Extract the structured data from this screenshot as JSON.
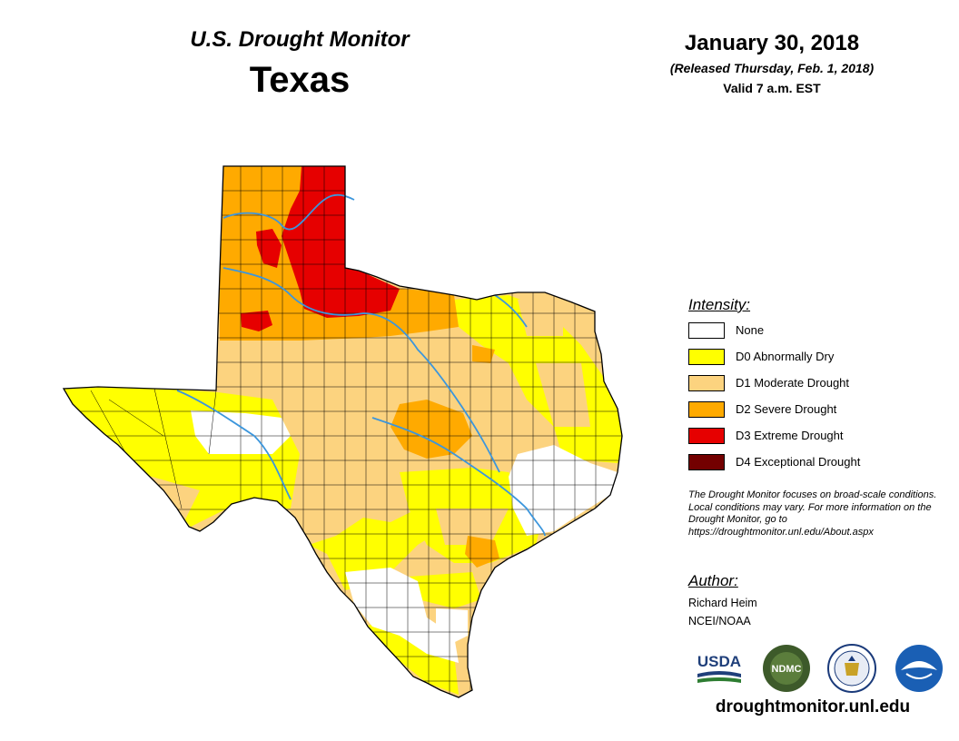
{
  "header": {
    "product": "U.S. Drought Monitor",
    "region": "Texas",
    "date": "January 30, 2018",
    "released": "(Released Thursday, Feb. 1, 2018)",
    "valid": "Valid 7 a.m. EST"
  },
  "legend": {
    "heading": "Intensity:",
    "items": [
      {
        "label": "None",
        "color": "#ffffff"
      },
      {
        "label": "D0 Abnormally Dry",
        "color": "#ffff00"
      },
      {
        "label": "D1 Moderate Drought",
        "color": "#fcd37f"
      },
      {
        "label": "D2 Severe Drought",
        "color": "#ffaa00"
      },
      {
        "label": "D3 Extreme Drought",
        "color": "#e60000"
      },
      {
        "label": "D4 Exceptional Drought",
        "color": "#730000"
      }
    ]
  },
  "note": "The Drought Monitor focuses on broad-scale conditions. Local conditions may vary. For more information on the Drought Monitor, go to https://droughtmonitor.unl.edu/About.aspx",
  "author": {
    "heading": "Author:",
    "name": "Richard Heim",
    "organization": "NCEI/NOAA"
  },
  "logos": [
    {
      "name": "USDA",
      "icon": "usda-logo"
    },
    {
      "name": "NDMC",
      "icon": "ndmc-logo"
    },
    {
      "name": "Dept. of Commerce",
      "icon": "commerce-seal"
    },
    {
      "name": "NOAA",
      "icon": "noaa-logo"
    }
  ],
  "website": "droughtmonitor.unl.edu",
  "colors": {
    "river": "#3c96dc",
    "county_border": "#000000"
  }
}
